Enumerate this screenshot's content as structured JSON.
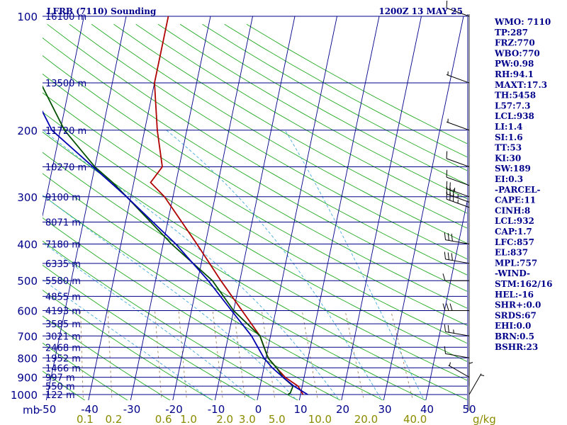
{
  "chart_data": {
    "type": "line",
    "title_left": "LFRB (7110) Sounding",
    "title_right": "1200Z 13 MAY 25",
    "pressure_axis": {
      "unit": "mb",
      "range": [
        100,
        1050
      ],
      "scale": "log",
      "ticks": [
        {
          "value": 100,
          "label": "100"
        },
        {
          "value": 200,
          "label": "200"
        },
        {
          "value": 300,
          "label": "300"
        },
        {
          "value": 400,
          "label": "400"
        },
        {
          "value": 500,
          "label": "500"
        },
        {
          "value": 600,
          "label": "600"
        },
        {
          "value": 700,
          "label": "700"
        },
        {
          "value": 800,
          "label": "800"
        },
        {
          "value": 900,
          "label": "900"
        },
        {
          "value": 1000,
          "label": "1000"
        }
      ]
    },
    "temperature_axis": {
      "ticks": [
        "-50",
        "-40",
        "-30",
        "-20",
        "-10",
        "0",
        "10",
        "20",
        "30",
        "40",
        "50"
      ],
      "values": [
        -50,
        -40,
        -30,
        -20,
        -10,
        0,
        10,
        20,
        30,
        40,
        50
      ]
    },
    "mixing_ratio_axis": {
      "unit": "g/kg",
      "labels": [
        "0.1",
        "0.2",
        "0.6",
        "1.0",
        "2.0",
        "3.0",
        "5.0",
        "10.0",
        "20.0",
        "40.0"
      ],
      "values": [
        0.1,
        0.2,
        0.6,
        1.0,
        2.0,
        3.0,
        5.0,
        10.0,
        20.0,
        40.0
      ]
    },
    "height_levels": [
      {
        "p": 100,
        "label": "16100 m"
      },
      {
        "p": 150,
        "label": "13500 m"
      },
      {
        "p": 200,
        "label": "11720 m"
      },
      {
        "p": 250,
        "label": "10270 m"
      },
      {
        "p": 300,
        "label": "9100 m"
      },
      {
        "p": 350,
        "label": "8071 m"
      },
      {
        "p": 400,
        "label": "7180 m"
      },
      {
        "p": 450,
        "label": "6335 m"
      },
      {
        "p": 500,
        "label": "5580 m"
      },
      {
        "p": 550,
        "label": "4855 m"
      },
      {
        "p": 600,
        "label": "4193 m"
      },
      {
        "p": 650,
        "label": "3585 m"
      },
      {
        "p": 700,
        "label": "3021 m"
      },
      {
        "p": 750,
        "label": "2468 m"
      },
      {
        "p": 800,
        "label": "1952 m"
      },
      {
        "p": 850,
        "label": "1466 m"
      },
      {
        "p": 900,
        "label": "997 m"
      },
      {
        "p": 950,
        "label": "550 m"
      },
      {
        "p": 1000,
        "label": "122 m"
      }
    ],
    "series": [
      {
        "color": "#b00000",
        "points": [
          [
            1000,
            10.6
          ],
          [
            950,
            9
          ],
          [
            900,
            5.5
          ],
          [
            850,
            3
          ],
          [
            800,
            0.5
          ],
          [
            700,
            -2.5
          ],
          [
            600,
            -8
          ],
          [
            500,
            -14.5
          ],
          [
            400,
            -22
          ],
          [
            300,
            -32
          ],
          [
            275,
            -36
          ],
          [
            250,
            -34
          ],
          [
            200,
            -37
          ],
          [
            150,
            -40
          ],
          [
            100,
            -40
          ]
        ]
      },
      {
        "color": "#005000",
        "points": [
          [
            1000,
            7
          ],
          [
            990,
            7.5
          ],
          [
            950,
            7.8
          ],
          [
            900,
            5
          ],
          [
            850,
            3
          ],
          [
            800,
            0.5
          ],
          [
            700,
            -2.5
          ],
          [
            600,
            -10
          ],
          [
            500,
            -16.5
          ],
          [
            400,
            -28
          ],
          [
            300,
            -41
          ],
          [
            275,
            -45
          ],
          [
            250,
            -50
          ],
          [
            200,
            -59
          ],
          [
            150,
            -67
          ],
          [
            100,
            -75
          ]
        ]
      },
      {
        "color": "#0000b0",
        "points": [
          [
            1000,
            11.7
          ],
          [
            950,
            8
          ],
          [
            900,
            5
          ],
          [
            850,
            2
          ],
          [
            800,
            -0.5
          ],
          [
            700,
            -4.5
          ],
          [
            600,
            -10.5
          ],
          [
            500,
            -17.5
          ],
          [
            400,
            -27
          ],
          [
            300,
            -41
          ],
          [
            275,
            -45.5
          ],
          [
            200,
            -62
          ],
          [
            150,
            -70
          ],
          [
            100,
            -78
          ]
        ]
      }
    ],
    "wind_barbs": [
      {
        "p": 100,
        "dir": 290,
        "spd": 10
      },
      {
        "p": 150,
        "dir": 290,
        "spd": 5
      },
      {
        "p": 200,
        "dir": 290,
        "spd": 5
      },
      {
        "p": 250,
        "dir": 290,
        "spd": 10
      },
      {
        "p": 280,
        "dir": 290,
        "spd": 10
      },
      {
        "p": 300,
        "dir": 290,
        "spd": 25
      },
      {
        "p": 310,
        "dir": 290,
        "spd": 35
      },
      {
        "p": 320,
        "dir": 290,
        "spd": 35
      },
      {
        "p": 400,
        "dir": 280,
        "spd": 30
      },
      {
        "p": 450,
        "dir": 280,
        "spd": 30
      },
      {
        "p": 500,
        "dir": 270,
        "spd": 10
      },
      {
        "p": 600,
        "dir": 270,
        "spd": 30
      },
      {
        "p": 700,
        "dir": 280,
        "spd": 25
      },
      {
        "p": 800,
        "dir": 280,
        "spd": 10
      },
      {
        "p": 900,
        "dir": 300,
        "spd": 5
      },
      {
        "p": 950,
        "dir": 0,
        "spd": 5
      },
      {
        "p": 1000,
        "dir": 30,
        "spd": 5
      }
    ]
  },
  "indices": [
    "WMO: 7110",
    "TP:287",
    "FRZ:770",
    "WBO:770",
    "PW:0.98",
    "RH:94.1",
    "MAXT:17.3",
    "TH:5458",
    "L57:7.3",
    "LCL:938",
    "LI:1.4",
    "SI:1.6",
    "TT:53",
    "KI:30",
    "SW:189",
    "EI:0.3",
    "-PARCEL-",
    "CAPE:11",
    "CINH:8",
    "LCL:932",
    "CAP:1.7",
    "LFC:857",
    "EL:837",
    "MPL:757",
    "-WIND-",
    "STM:162/16",
    "HEL:-16",
    "SHR+:0.0",
    "SRDS:67",
    "EHI:0.0",
    "BRN:0.5",
    "BSHR:23"
  ],
  "colors": {
    "isobar": "#00008b",
    "isotherm": "#00008b",
    "dry_adiabat": "#22aa22",
    "moist_adiabat": "#44aadd",
    "mixing_ratio": "#997744",
    "text": "#00008b",
    "mix_text": "#8b8b00"
  }
}
